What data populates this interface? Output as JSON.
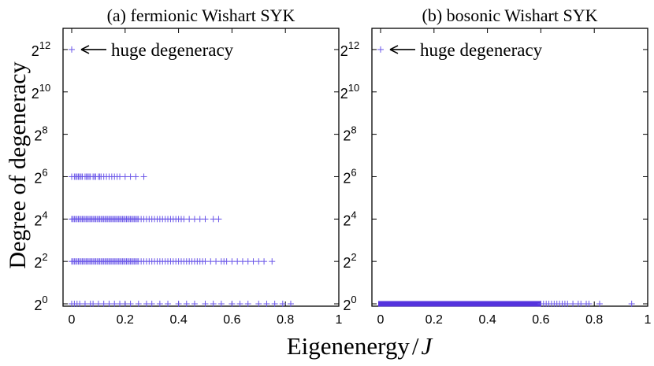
{
  "figure": {
    "ylabel": "Degree of degeneracy",
    "xlabel_main": "Eigenenergy",
    "xlabel_slash": "/",
    "xlabel_var": "J",
    "marker_color": "#6a56e8",
    "band_color": "#5533dd"
  },
  "chart_data": [
    {
      "type": "scatter",
      "title": "(a) fermionic Wishart SYK",
      "xlim": [
        0,
        1
      ],
      "ylim_exponent": [
        0,
        13
      ],
      "y_scale": "log2",
      "x_ticks": [
        "0",
        "0.2",
        "0.4",
        "0.6",
        "0.8",
        "1"
      ],
      "x_tick_values": [
        0,
        0.2,
        0.4,
        0.6,
        0.8,
        1
      ],
      "y_ticks": [
        {
          "base": "2",
          "exp": "0",
          "value": 0
        },
        {
          "base": "2",
          "exp": "2",
          "value": 2
        },
        {
          "base": "2",
          "exp": "4",
          "value": 4
        },
        {
          "base": "2",
          "exp": "6",
          "value": 6
        },
        {
          "base": "2",
          "exp": "8",
          "value": 8
        },
        {
          "base": "2",
          "exp": "10",
          "value": 10
        },
        {
          "base": "2",
          "exp": "12",
          "value": 12
        }
      ],
      "annotation": {
        "text": "huge degeneracy",
        "arrow": "left",
        "target_x": 0,
        "target_exponent": 12
      },
      "series": [
        {
          "name": "degeneracy 2^12",
          "exponent": 12,
          "x": [
            0.0
          ]
        },
        {
          "name": "degeneracy 2^6",
          "exponent": 6,
          "x": [
            0.0,
            0.01,
            0.015,
            0.02,
            0.025,
            0.03,
            0.035,
            0.04,
            0.05,
            0.055,
            0.06,
            0.065,
            0.07,
            0.08,
            0.085,
            0.09,
            0.1,
            0.105,
            0.11,
            0.12,
            0.13,
            0.14,
            0.15,
            0.16,
            0.17,
            0.18,
            0.2,
            0.22,
            0.24,
            0.27
          ]
        },
        {
          "name": "degeneracy 2^4",
          "exponent": 4,
          "x": [
            0.0,
            0.005,
            0.01,
            0.015,
            0.02,
            0.025,
            0.03,
            0.035,
            0.04,
            0.045,
            0.05,
            0.055,
            0.06,
            0.065,
            0.07,
            0.075,
            0.08,
            0.085,
            0.09,
            0.095,
            0.1,
            0.105,
            0.11,
            0.115,
            0.12,
            0.125,
            0.13,
            0.135,
            0.14,
            0.145,
            0.15,
            0.155,
            0.16,
            0.165,
            0.17,
            0.175,
            0.18,
            0.185,
            0.19,
            0.195,
            0.2,
            0.205,
            0.21,
            0.215,
            0.22,
            0.225,
            0.23,
            0.235,
            0.24,
            0.245,
            0.25,
            0.26,
            0.27,
            0.28,
            0.29,
            0.3,
            0.31,
            0.32,
            0.33,
            0.34,
            0.35,
            0.36,
            0.37,
            0.38,
            0.39,
            0.4,
            0.41,
            0.42,
            0.44,
            0.46,
            0.48,
            0.5,
            0.53,
            0.55
          ]
        },
        {
          "name": "degeneracy 2^2",
          "exponent": 2,
          "x": [
            0.0,
            0.005,
            0.01,
            0.015,
            0.02,
            0.025,
            0.03,
            0.035,
            0.04,
            0.045,
            0.05,
            0.055,
            0.06,
            0.065,
            0.07,
            0.075,
            0.08,
            0.085,
            0.09,
            0.095,
            0.1,
            0.105,
            0.11,
            0.115,
            0.12,
            0.125,
            0.13,
            0.135,
            0.14,
            0.145,
            0.15,
            0.155,
            0.16,
            0.165,
            0.17,
            0.175,
            0.18,
            0.185,
            0.19,
            0.195,
            0.2,
            0.205,
            0.21,
            0.215,
            0.22,
            0.225,
            0.23,
            0.235,
            0.24,
            0.245,
            0.25,
            0.26,
            0.27,
            0.28,
            0.29,
            0.3,
            0.31,
            0.32,
            0.33,
            0.34,
            0.35,
            0.36,
            0.37,
            0.38,
            0.39,
            0.4,
            0.41,
            0.42,
            0.43,
            0.44,
            0.45,
            0.46,
            0.47,
            0.48,
            0.49,
            0.5,
            0.52,
            0.54,
            0.56,
            0.57,
            0.58,
            0.6,
            0.62,
            0.64,
            0.66,
            0.68,
            0.7,
            0.72,
            0.75
          ]
        },
        {
          "name": "degeneracy 2^0",
          "exponent": 0,
          "x": [
            0.0,
            0.01,
            0.02,
            0.03,
            0.05,
            0.07,
            0.08,
            0.1,
            0.12,
            0.14,
            0.16,
            0.18,
            0.2,
            0.22,
            0.25,
            0.28,
            0.3,
            0.33,
            0.36,
            0.4,
            0.43,
            0.46,
            0.5,
            0.53,
            0.56,
            0.6,
            0.63,
            0.66,
            0.7,
            0.73,
            0.76,
            0.79,
            0.82
          ]
        }
      ]
    },
    {
      "type": "scatter",
      "title": "(b) bosonic Wishart SYK",
      "xlim": [
        0,
        1
      ],
      "ylim_exponent": [
        0,
        13
      ],
      "y_scale": "log2",
      "x_ticks": [
        "0",
        "0.2",
        "0.4",
        "0.6",
        "0.8",
        "1"
      ],
      "x_tick_values": [
        0,
        0.2,
        0.4,
        0.6,
        0.8,
        1
      ],
      "y_ticks": [
        {
          "base": "2",
          "exp": "0",
          "value": 0
        },
        {
          "base": "2",
          "exp": "2",
          "value": 2
        },
        {
          "base": "2",
          "exp": "4",
          "value": 4
        },
        {
          "base": "2",
          "exp": "6",
          "value": 6
        },
        {
          "base": "2",
          "exp": "8",
          "value": 8
        },
        {
          "base": "2",
          "exp": "10",
          "value": 10
        },
        {
          "base": "2",
          "exp": "12",
          "value": 12
        }
      ],
      "annotation": {
        "text": "huge degeneracy",
        "arrow": "left",
        "target_x": 0,
        "target_exponent": 12
      },
      "dense_band": {
        "exponent": 0,
        "x_range": [
          0.0,
          0.6
        ]
      },
      "series": [
        {
          "name": "degeneracy 2^12",
          "exponent": 12,
          "x": [
            0.0
          ]
        },
        {
          "name": "degeneracy 2^0",
          "exponent": 0,
          "x": [
            0.6,
            0.61,
            0.62,
            0.63,
            0.64,
            0.65,
            0.66,
            0.67,
            0.68,
            0.69,
            0.7,
            0.72,
            0.74,
            0.75,
            0.77,
            0.78,
            0.82,
            0.94
          ]
        }
      ]
    }
  ]
}
